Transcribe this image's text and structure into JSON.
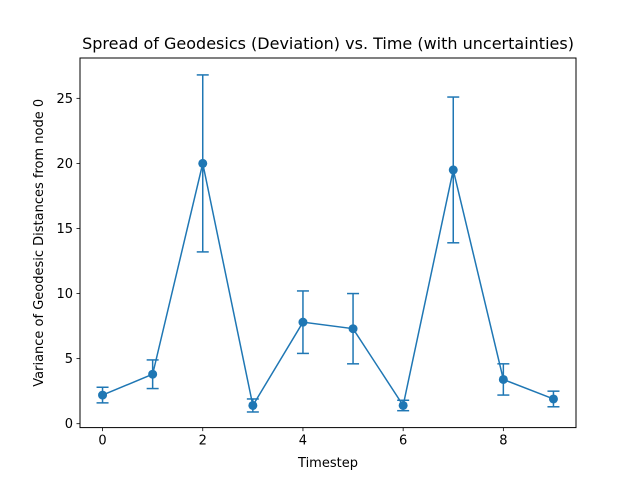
{
  "chart_data": {
    "type": "line",
    "title": "Spread of Geodesics (Deviation) vs. Time (with uncertainties)",
    "xlabel": "Timestep",
    "ylabel": "Variance of Geodesic Distances from node 0",
    "xlim": [
      -0.45,
      9.45
    ],
    "ylim": [
      -0.3,
      28.1
    ],
    "xticks": [
      0,
      2,
      4,
      6,
      8
    ],
    "yticks": [
      0,
      5,
      10,
      15,
      20,
      25
    ],
    "grid": false,
    "legend": "none",
    "color": "#1f77b4",
    "series": [
      {
        "x": [
          0,
          1,
          2,
          3,
          4,
          5,
          6,
          7,
          8,
          9
        ],
        "y": [
          2.2,
          3.8,
          20.0,
          1.4,
          7.8,
          7.3,
          1.4,
          19.5,
          3.4,
          1.9
        ],
        "yerr": [
          0.6,
          1.1,
          6.8,
          0.5,
          2.4,
          2.7,
          0.4,
          5.6,
          1.2,
          0.6
        ]
      }
    ]
  }
}
